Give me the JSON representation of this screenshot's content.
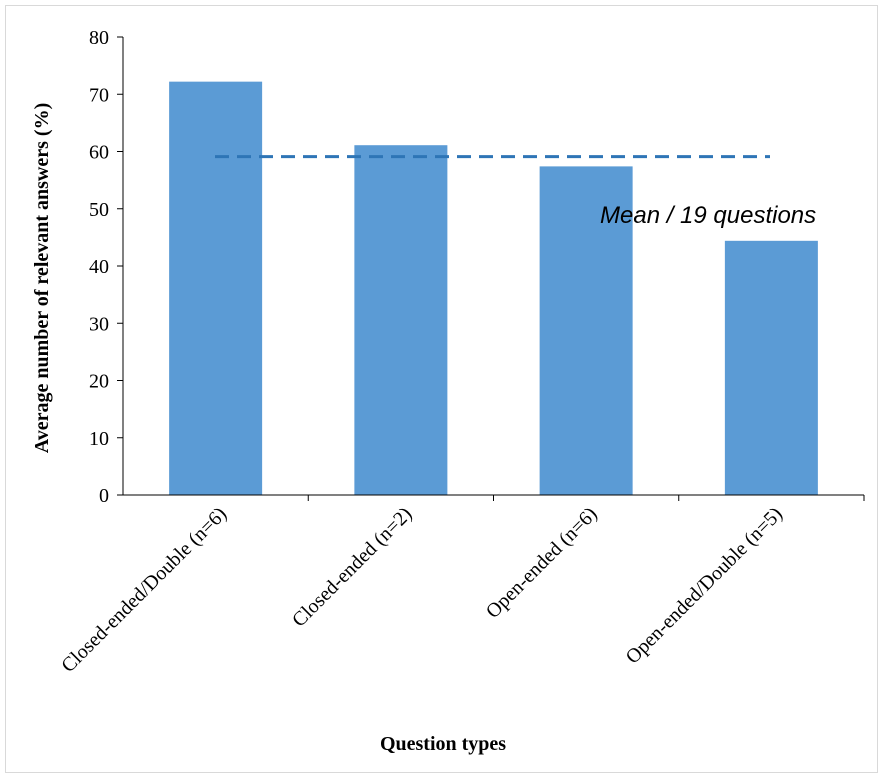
{
  "chart_data": {
    "type": "bar",
    "title": "",
    "xlabel": "Question types",
    "ylabel": "Average number of relevant answers (%)",
    "ylim": [
      0,
      80
    ],
    "yticks": [
      0,
      10,
      20,
      30,
      40,
      50,
      60,
      70,
      80
    ],
    "categories": [
      "Closed-ended/Double (n=6)",
      "Closed-ended (n=2)",
      "Open-ended (n=6)",
      "Open-ended/Double (n=5)"
    ],
    "values": [
      72.2,
      61.1,
      57.4,
      44.4
    ],
    "mean_line": {
      "value": 59.1,
      "label": "Mean / 19 questions",
      "style": "dashed"
    },
    "bar_color": "#5b9bd5",
    "mean_line_color": "#2e75b6",
    "grid": false,
    "legend": "none"
  }
}
